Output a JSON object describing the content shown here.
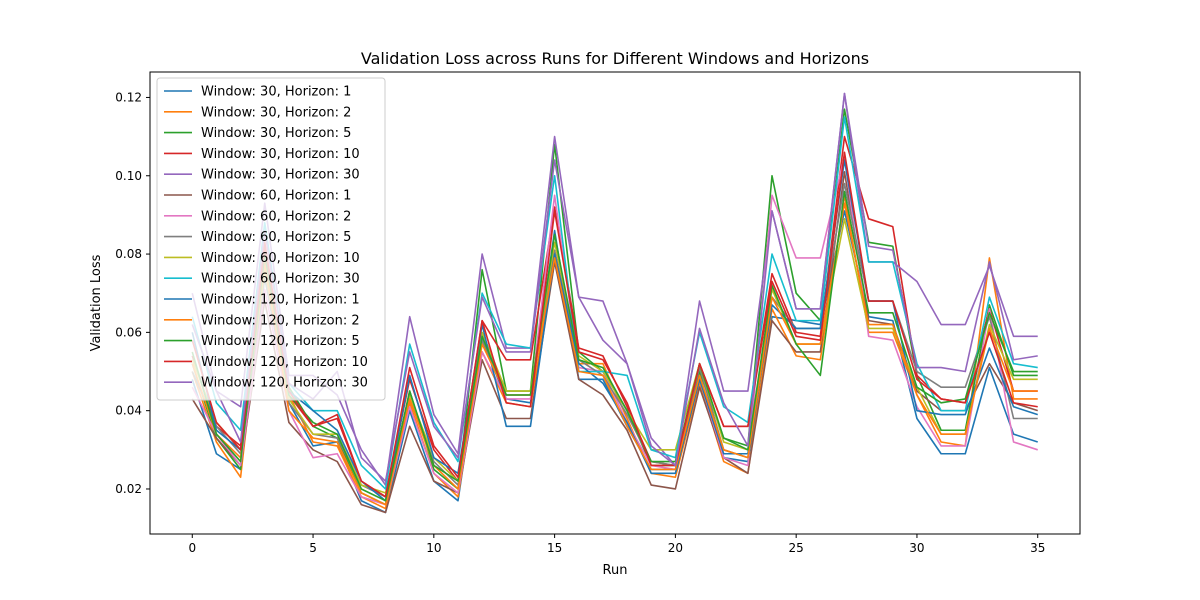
{
  "chart_data": {
    "type": "line",
    "title": "Validation Loss across Runs for Different Windows and Horizons",
    "xlabel": "Run",
    "ylabel": "Validation Loss",
    "xlim": [
      -1.75,
      36.75
    ],
    "ylim": [
      0.0085,
      0.1265
    ],
    "xticks": [
      0,
      5,
      10,
      15,
      20,
      25,
      30,
      35
    ],
    "xtick_labels": [
      "0",
      "5",
      "10",
      "15",
      "20",
      "25",
      "30",
      "35"
    ],
    "yticks": [
      0.02,
      0.04,
      0.06,
      0.08,
      0.1,
      0.12
    ],
    "ytick_labels": [
      "0.02",
      "0.04",
      "0.06",
      "0.08",
      "0.10",
      "0.12"
    ],
    "grid": false,
    "legend_position": "top-left",
    "x": [
      0,
      1,
      2,
      3,
      4,
      5,
      6,
      7,
      8,
      9,
      10,
      11,
      12,
      13,
      14,
      15,
      16,
      17,
      18,
      19,
      20,
      21,
      22,
      23,
      24,
      25,
      26,
      27,
      28,
      29,
      30,
      31,
      32,
      33,
      34,
      35
    ],
    "series": [
      {
        "name": "Window: 30, Horizon: 1",
        "color": "#1f77b4",
        "values": [
          0.048,
          0.029,
          0.025,
          0.074,
          0.042,
          0.031,
          0.032,
          0.017,
          0.014,
          0.04,
          0.022,
          0.017,
          0.058,
          0.043,
          0.042,
          0.086,
          0.048,
          0.048,
          0.036,
          0.025,
          0.025,
          0.049,
          0.028,
          0.027,
          0.064,
          0.063,
          0.062,
          0.091,
          0.064,
          0.063,
          0.038,
          0.029,
          0.029,
          0.051,
          0.034,
          0.032
        ]
      },
      {
        "name": "Window: 30, Horizon: 2",
        "color": "#ff7f0e",
        "values": [
          0.05,
          0.032,
          0.023,
          0.077,
          0.044,
          0.032,
          0.031,
          0.018,
          0.015,
          0.042,
          0.024,
          0.018,
          0.055,
          0.042,
          0.041,
          0.078,
          0.052,
          0.052,
          0.038,
          0.024,
          0.023,
          0.047,
          0.027,
          0.024,
          0.066,
          0.054,
          0.053,
          0.095,
          0.06,
          0.06,
          0.044,
          0.032,
          0.031,
          0.079,
          0.043,
          0.043
        ]
      },
      {
        "name": "Window: 30, Horizon: 5",
        "color": "#2ca02c",
        "values": [
          0.052,
          0.033,
          0.025,
          0.08,
          0.046,
          0.036,
          0.033,
          0.019,
          0.016,
          0.045,
          0.025,
          0.02,
          0.076,
          0.045,
          0.045,
          0.108,
          0.055,
          0.05,
          0.04,
          0.026,
          0.026,
          0.05,
          0.033,
          0.031,
          0.1,
          0.07,
          0.063,
          0.117,
          0.083,
          0.082,
          0.049,
          0.035,
          0.035,
          0.067,
          0.049,
          0.049
        ]
      },
      {
        "name": "Window: 30, Horizon: 10",
        "color": "#d62728",
        "values": [
          0.054,
          0.036,
          0.031,
          0.083,
          0.044,
          0.036,
          0.039,
          0.022,
          0.018,
          0.048,
          0.03,
          0.022,
          0.063,
          0.053,
          0.053,
          0.092,
          0.056,
          0.054,
          0.041,
          0.027,
          0.026,
          0.052,
          0.036,
          0.036,
          0.075,
          0.06,
          0.059,
          0.11,
          0.089,
          0.087,
          0.049,
          0.043,
          0.042,
          0.066,
          0.045,
          0.045
        ]
      },
      {
        "name": "Window: 30, Horizon: 30",
        "color": "#9467bd",
        "values": [
          0.07,
          0.045,
          0.041,
          0.093,
          0.049,
          0.049,
          0.044,
          0.03,
          0.021,
          0.064,
          0.039,
          0.029,
          0.08,
          0.056,
          0.056,
          0.11,
          0.069,
          0.068,
          0.052,
          0.033,
          0.026,
          0.068,
          0.045,
          0.045,
          0.091,
          0.066,
          0.066,
          0.121,
          0.078,
          0.078,
          0.073,
          0.062,
          0.062,
          0.077,
          0.059,
          0.059
        ]
      },
      {
        "name": "Window: 60, Horizon: 1",
        "color": "#8c564b",
        "values": [
          0.043,
          0.033,
          0.026,
          0.068,
          0.037,
          0.03,
          0.027,
          0.016,
          0.014,
          0.036,
          0.022,
          0.019,
          0.053,
          0.038,
          0.038,
          0.078,
          0.048,
          0.044,
          0.035,
          0.021,
          0.02,
          0.046,
          0.028,
          0.024,
          0.063,
          0.055,
          0.055,
          0.101,
          0.063,
          0.062,
          0.045,
          0.04,
          0.04,
          0.052,
          0.042,
          0.04
        ]
      },
      {
        "name": "Window: 60, Horizon: 2",
        "color": "#e377c2",
        "values": [
          0.046,
          0.034,
          0.026,
          0.071,
          0.04,
          0.028,
          0.029,
          0.018,
          0.016,
          0.041,
          0.024,
          0.019,
          0.055,
          0.043,
          0.043,
          0.095,
          0.051,
          0.05,
          0.037,
          0.026,
          0.025,
          0.048,
          0.028,
          0.026,
          0.095,
          0.079,
          0.079,
          0.105,
          0.059,
          0.058,
          0.041,
          0.031,
          0.031,
          0.066,
          0.032,
          0.03
        ]
      },
      {
        "name": "Window: 60, Horizon: 5",
        "color": "#7f7f7f",
        "values": [
          0.05,
          0.036,
          0.029,
          0.074,
          0.042,
          0.034,
          0.033,
          0.021,
          0.018,
          0.043,
          0.027,
          0.021,
          0.058,
          0.044,
          0.044,
          0.081,
          0.053,
          0.049,
          0.039,
          0.027,
          0.026,
          0.051,
          0.03,
          0.028,
          0.069,
          0.061,
          0.061,
          0.098,
          0.068,
          0.068,
          0.05,
          0.046,
          0.046,
          0.064,
          0.038,
          0.038
        ]
      },
      {
        "name": "Window: 60, Horizon: 10",
        "color": "#bcbd22",
        "values": [
          0.053,
          0.037,
          0.03,
          0.076,
          0.043,
          0.034,
          0.034,
          0.021,
          0.019,
          0.044,
          0.028,
          0.022,
          0.06,
          0.045,
          0.045,
          0.083,
          0.054,
          0.05,
          0.04,
          0.03,
          0.03,
          0.052,
          0.032,
          0.03,
          0.071,
          0.057,
          0.057,
          0.089,
          0.061,
          0.061,
          0.046,
          0.034,
          0.034,
          0.062,
          0.048,
          0.048
        ]
      },
      {
        "name": "Window: 60, Horizon: 30",
        "color": "#17becf",
        "values": [
          0.064,
          0.042,
          0.035,
          0.088,
          0.047,
          0.04,
          0.04,
          0.026,
          0.02,
          0.057,
          0.037,
          0.027,
          0.07,
          0.057,
          0.056,
          0.1,
          0.05,
          0.05,
          0.049,
          0.03,
          0.028,
          0.06,
          0.041,
          0.037,
          0.08,
          0.063,
          0.063,
          0.115,
          0.078,
          0.078,
          0.052,
          0.04,
          0.04,
          0.069,
          0.052,
          0.051
        ]
      },
      {
        "name": "Window: 120, Horizon: 1",
        "color": "#1f77b4",
        "values": [
          0.06,
          0.035,
          0.03,
          0.08,
          0.045,
          0.04,
          0.035,
          0.022,
          0.017,
          0.049,
          0.028,
          0.024,
          0.062,
          0.036,
          0.036,
          0.08,
          0.052,
          0.047,
          0.037,
          0.024,
          0.024,
          0.048,
          0.029,
          0.029,
          0.067,
          0.061,
          0.061,
          0.104,
          0.068,
          0.068,
          0.04,
          0.039,
          0.039,
          0.056,
          0.041,
          0.039
        ]
      },
      {
        "name": "Window: 120, Horizon: 2",
        "color": "#ff7f0e",
        "values": [
          0.052,
          0.034,
          0.028,
          0.078,
          0.04,
          0.033,
          0.032,
          0.019,
          0.016,
          0.043,
          0.026,
          0.02,
          0.057,
          0.044,
          0.044,
          0.079,
          0.05,
          0.049,
          0.036,
          0.025,
          0.025,
          0.049,
          0.03,
          0.028,
          0.069,
          0.057,
          0.057,
          0.093,
          0.062,
          0.062,
          0.044,
          0.034,
          0.034,
          0.061,
          0.045,
          0.045
        ]
      },
      {
        "name": "Window: 120, Horizon: 5",
        "color": "#2ca02c",
        "values": [
          0.055,
          0.034,
          0.027,
          0.08,
          0.044,
          0.037,
          0.034,
          0.02,
          0.017,
          0.045,
          0.026,
          0.022,
          0.059,
          0.044,
          0.044,
          0.085,
          0.053,
          0.051,
          0.04,
          0.027,
          0.027,
          0.052,
          0.033,
          0.03,
          0.072,
          0.057,
          0.049,
          0.096,
          0.065,
          0.065,
          0.046,
          0.042,
          0.043,
          0.065,
          0.05,
          0.05
        ]
      },
      {
        "name": "Window: 120, Horizon: 10",
        "color": "#d62728",
        "values": [
          0.058,
          0.037,
          0.03,
          0.082,
          0.045,
          0.036,
          0.038,
          0.022,
          0.018,
          0.051,
          0.031,
          0.023,
          0.063,
          0.042,
          0.041,
          0.091,
          0.055,
          0.053,
          0.042,
          0.026,
          0.026,
          0.052,
          0.036,
          0.036,
          0.073,
          0.059,
          0.058,
          0.106,
          0.068,
          0.068,
          0.048,
          0.043,
          0.042,
          0.06,
          0.042,
          0.041
        ]
      },
      {
        "name": "Window: 120, Horizon: 30",
        "color": "#9467bd",
        "values": [
          0.062,
          0.045,
          0.032,
          0.086,
          0.047,
          0.043,
          0.05,
          0.028,
          0.022,
          0.055,
          0.036,
          0.028,
          0.069,
          0.055,
          0.055,
          0.104,
          0.069,
          0.058,
          0.052,
          0.031,
          0.026,
          0.061,
          0.042,
          0.031,
          0.091,
          0.066,
          0.066,
          0.121,
          0.082,
          0.081,
          0.051,
          0.051,
          0.05,
          0.078,
          0.053,
          0.054
        ]
      }
    ]
  }
}
